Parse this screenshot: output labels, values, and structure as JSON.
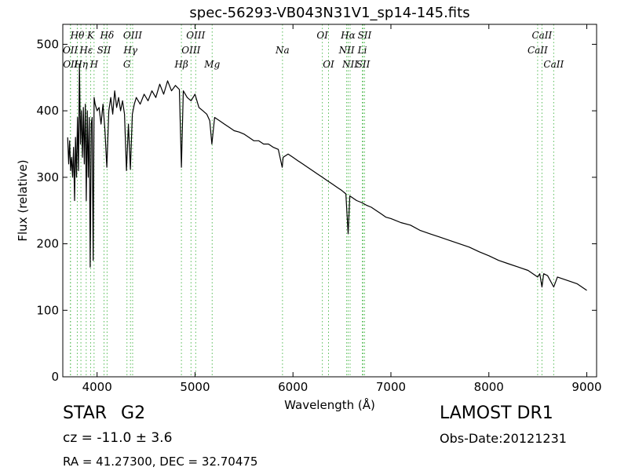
{
  "title": "spec-56293-VB043N31V1_sp14-145.fits",
  "spec_class": "STAR",
  "spec_subclass": "G2",
  "cz_text": "cz = -11.0 ± 3.6",
  "radec_text": "RA = 41.27300, DEC = 32.70475",
  "survey": "LAMOST DR1",
  "obs_date": "Obs-Date:20121231",
  "colors": {
    "spectrum": "#000000",
    "line_markers": "#55bb55",
    "axes": "#000000"
  },
  "chart_data": {
    "type": "line",
    "title": "spec-56293-VB043N31V1_sp14-145.fits",
    "xlabel": "Wavelength (Å)",
    "ylabel": "Flux (relative)",
    "xlim": [
      3650,
      9100
    ],
    "ylim": [
      0,
      530
    ],
    "xticks": [
      4000,
      5000,
      6000,
      7000,
      8000,
      9000
    ],
    "yticks": [
      0,
      100,
      200,
      300,
      400,
      500
    ],
    "grid": false,
    "series": [
      {
        "points": [
          [
            3700,
            360
          ],
          [
            3710,
            320
          ],
          [
            3720,
            355
          ],
          [
            3730,
            310
          ],
          [
            3740,
            330
          ],
          [
            3750,
            300
          ],
          [
            3760,
            345
          ],
          [
            3770,
            265
          ],
          [
            3780,
            360
          ],
          [
            3790,
            300
          ],
          [
            3800,
            390
          ],
          [
            3810,
            310
          ],
          [
            3820,
            470
          ],
          [
            3830,
            350
          ],
          [
            3840,
            400
          ],
          [
            3850,
            330
          ],
          [
            3860,
            405
          ],
          [
            3870,
            320
          ],
          [
            3880,
            410
          ],
          [
            3890,
            265
          ],
          [
            3900,
            400
          ],
          [
            3910,
            300
          ],
          [
            3920,
            390
          ],
          [
            3930,
            165
          ],
          [
            3940,
            380
          ],
          [
            3950,
            390
          ],
          [
            3960,
            175
          ],
          [
            3970,
            420
          ],
          [
            3980,
            410
          ],
          [
            4000,
            400
          ],
          [
            4020,
            405
          ],
          [
            4040,
            380
          ],
          [
            4060,
            410
          ],
          [
            4080,
            370
          ],
          [
            4100,
            315
          ],
          [
            4120,
            400
          ],
          [
            4140,
            420
          ],
          [
            4160,
            395
          ],
          [
            4180,
            430
          ],
          [
            4200,
            405
          ],
          [
            4220,
            420
          ],
          [
            4240,
            400
          ],
          [
            4260,
            415
          ],
          [
            4280,
            395
          ],
          [
            4300,
            310
          ],
          [
            4320,
            380
          ],
          [
            4340,
            312
          ],
          [
            4360,
            395
          ],
          [
            4380,
            410
          ],
          [
            4400,
            420
          ],
          [
            4440,
            410
          ],
          [
            4480,
            425
          ],
          [
            4520,
            415
          ],
          [
            4560,
            430
          ],
          [
            4600,
            420
          ],
          [
            4640,
            440
          ],
          [
            4680,
            425
          ],
          [
            4720,
            445
          ],
          [
            4760,
            430
          ],
          [
            4800,
            438
          ],
          [
            4840,
            432
          ],
          [
            4861,
            315
          ],
          [
            4880,
            430
          ],
          [
            4920,
            420
          ],
          [
            4960,
            415
          ],
          [
            5000,
            425
          ],
          [
            5040,
            405
          ],
          [
            5080,
            400
          ],
          [
            5120,
            395
          ],
          [
            5150,
            385
          ],
          [
            5172,
            350
          ],
          [
            5200,
            390
          ],
          [
            5250,
            385
          ],
          [
            5300,
            380
          ],
          [
            5350,
            375
          ],
          [
            5400,
            370
          ],
          [
            5450,
            368
          ],
          [
            5500,
            365
          ],
          [
            5550,
            360
          ],
          [
            5600,
            355
          ],
          [
            5650,
            355
          ],
          [
            5700,
            350
          ],
          [
            5750,
            350
          ],
          [
            5800,
            345
          ],
          [
            5850,
            342
          ],
          [
            5890,
            315
          ],
          [
            5900,
            330
          ],
          [
            5950,
            335
          ],
          [
            6000,
            330
          ],
          [
            6050,
            325
          ],
          [
            6100,
            320
          ],
          [
            6150,
            315
          ],
          [
            6200,
            310
          ],
          [
            6250,
            305
          ],
          [
            6300,
            300
          ],
          [
            6350,
            295
          ],
          [
            6400,
            290
          ],
          [
            6450,
            285
          ],
          [
            6500,
            280
          ],
          [
            6540,
            275
          ],
          [
            6563,
            215
          ],
          [
            6580,
            272
          ],
          [
            6600,
            270
          ],
          [
            6650,
            265
          ],
          [
            6700,
            262
          ],
          [
            6750,
            258
          ],
          [
            6800,
            255
          ],
          [
            6850,
            250
          ],
          [
            6900,
            245
          ],
          [
            6950,
            240
          ],
          [
            7000,
            238
          ],
          [
            7100,
            232
          ],
          [
            7200,
            228
          ],
          [
            7300,
            220
          ],
          [
            7400,
            215
          ],
          [
            7500,
            210
          ],
          [
            7600,
            205
          ],
          [
            7700,
            200
          ],
          [
            7800,
            195
          ],
          [
            7900,
            188
          ],
          [
            8000,
            182
          ],
          [
            8100,
            175
          ],
          [
            8200,
            170
          ],
          [
            8300,
            165
          ],
          [
            8400,
            160
          ],
          [
            8498,
            150
          ],
          [
            8520,
            155
          ],
          [
            8542,
            135
          ],
          [
            8560,
            155
          ],
          [
            8600,
            152
          ],
          [
            8662,
            135
          ],
          [
            8700,
            150
          ],
          [
            8800,
            145
          ],
          [
            8900,
            140
          ],
          [
            9000,
            130
          ]
        ]
      }
    ],
    "line_markers": [
      {
        "label": "Hθ",
        "x": 3798,
        "row": 0
      },
      {
        "label": "K",
        "x": 3934,
        "row": 0
      },
      {
        "label": "Hδ",
        "x": 4102,
        "row": 0
      },
      {
        "label": "OIII",
        "x": 4363,
        "row": 0
      },
      {
        "label": "OII",
        "x": 3727,
        "row": 1
      },
      {
        "label": "Hε",
        "x": 3889,
        "row": 1
      },
      {
        "label": "SII",
        "x": 4071,
        "row": 1
      },
      {
        "label": "Hγ",
        "x": 4341,
        "row": 1
      },
      {
        "label": "OII",
        "x": 3729,
        "row": 2
      },
      {
        "label": "Hη",
        "x": 3835,
        "row": 2
      },
      {
        "label": "H",
        "x": 3969,
        "row": 2
      },
      {
        "label": "G",
        "x": 4305,
        "row": 2
      },
      {
        "label": "OIII",
        "x": 5007,
        "row": 0
      },
      {
        "label": "OIII",
        "x": 4959,
        "row": 1
      },
      {
        "label": "Hβ",
        "x": 4861,
        "row": 2
      },
      {
        "label": "Mg",
        "x": 5175,
        "row": 2
      },
      {
        "label": "Na",
        "x": 5893,
        "row": 1
      },
      {
        "label": "OI",
        "x": 6300,
        "row": 0
      },
      {
        "label": "OI",
        "x": 6363,
        "row": 2
      },
      {
        "label": "Hα",
        "x": 6563,
        "row": 0
      },
      {
        "label": "SII",
        "x": 6731,
        "row": 0
      },
      {
        "label": "NII",
        "x": 6548,
        "row": 1
      },
      {
        "label": "Li",
        "x": 6708,
        "row": 1
      },
      {
        "label": "NII",
        "x": 6583,
        "row": 2
      },
      {
        "label": "SII",
        "x": 6716,
        "row": 2
      },
      {
        "label": "CaII",
        "x": 8542,
        "row": 0
      },
      {
        "label": "CaII",
        "x": 8498,
        "row": 1
      },
      {
        "label": "CaII",
        "x": 8662,
        "row": 2
      }
    ]
  }
}
